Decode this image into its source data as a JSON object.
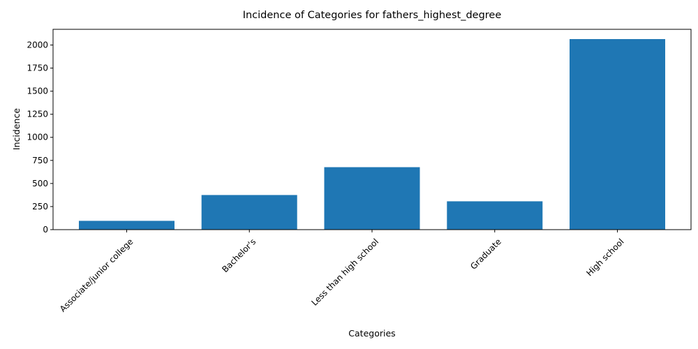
{
  "chart_data": {
    "type": "bar",
    "title": "Incidence of Categories for fathers_highest_degree",
    "xlabel": "Categories",
    "ylabel": "Incidence",
    "categories": [
      "Associate/junior college",
      "Bachelor's",
      "Less than high school",
      "Graduate",
      "High school"
    ],
    "values": [
      95,
      375,
      677,
      307,
      2064
    ],
    "ylim": [
      0,
      2170
    ],
    "yticks": [
      0,
      250,
      500,
      750,
      1000,
      1250,
      1500,
      1750,
      2000
    ],
    "grid": false,
    "bar_color": "#1f77b4"
  }
}
